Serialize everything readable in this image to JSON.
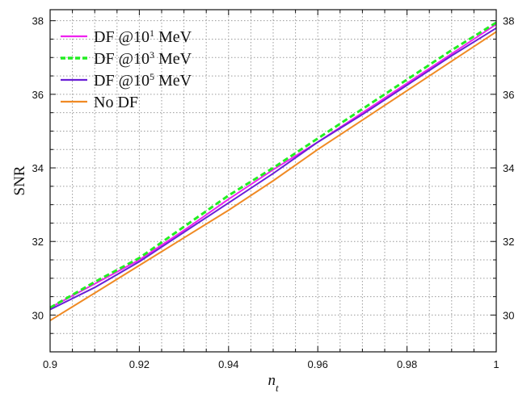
{
  "chart_data": {
    "type": "line",
    "title": "",
    "xlabel": "n",
    "xlabel_sub": "t",
    "ylabel": "SNR",
    "xlim": [
      0.9,
      1.0
    ],
    "ylim": [
      29.0,
      38.3
    ],
    "x_ticks": [
      0.9,
      0.92,
      0.94,
      0.96,
      0.98,
      1
    ],
    "x_tick_labels": [
      "0.9",
      "0.92",
      "0.94",
      "0.96",
      "0.98",
      "1"
    ],
    "y_ticks": [
      30,
      32,
      34,
      36,
      38
    ],
    "y_tick_labels": [
      "30",
      "32",
      "34",
      "36",
      "38"
    ],
    "grid": true,
    "right_axis_labels": true,
    "legend_position": "top-left",
    "x": [
      0.9,
      0.91,
      0.92,
      0.93,
      0.94,
      0.95,
      0.96,
      0.97,
      0.98,
      0.99,
      1.0
    ],
    "series": [
      {
        "name": "DF @10¹ MeV",
        "legend": {
          "prefix": "DF @10",
          "sup": "1",
          "suffix": " MeV"
        },
        "color": "#ee22ee",
        "dash": "solid",
        "values": [
          30.2,
          30.85,
          31.5,
          32.3,
          33.15,
          33.95,
          34.7,
          35.5,
          36.3,
          37.1,
          37.9
        ]
      },
      {
        "name": "DF @10³ MeV",
        "legend": {
          "prefix": "DF @10",
          "sup": "3",
          "suffix": " MeV"
        },
        "color": "#22ee22",
        "dash": "dashed",
        "values": [
          30.2,
          30.9,
          31.55,
          32.4,
          33.25,
          34.0,
          34.8,
          35.6,
          36.4,
          37.2,
          37.95
        ]
      },
      {
        "name": "DF @10⁵ MeV",
        "legend": {
          "prefix": "DF @10",
          "sup": "5",
          "suffix": " MeV"
        },
        "color": "#6a1fd6",
        "dash": "solid",
        "values": [
          30.15,
          30.75,
          31.45,
          32.25,
          33.05,
          33.85,
          34.7,
          35.45,
          36.25,
          37.05,
          37.8
        ]
      },
      {
        "name": "No DF",
        "legend": {
          "prefix": "No DF",
          "sup": "",
          "suffix": ""
        },
        "color": "#f08a24",
        "dash": "solid",
        "values": [
          29.85,
          30.6,
          31.35,
          32.1,
          32.85,
          33.65,
          34.5,
          35.3,
          36.1,
          36.9,
          37.7
        ]
      }
    ]
  }
}
